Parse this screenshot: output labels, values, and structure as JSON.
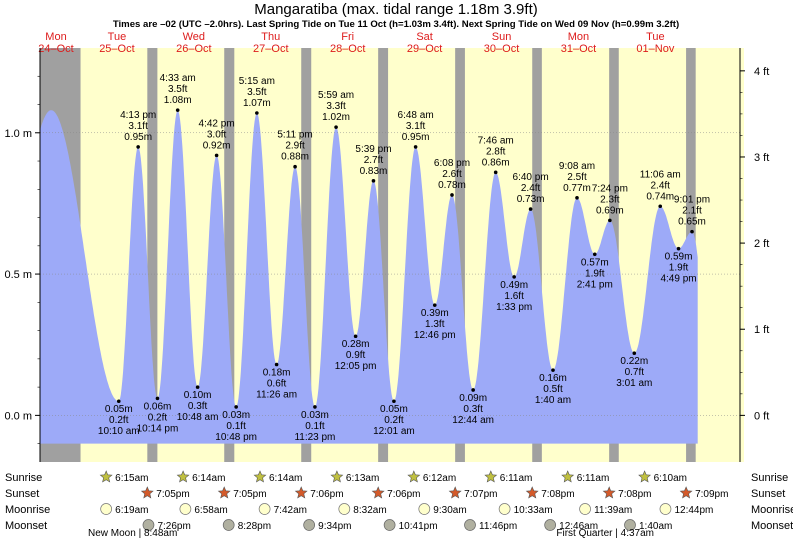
{
  "chart_data": {
    "type": "area",
    "title": "Mangaratiba (max. tidal range 1.18m 3.9ft)",
    "subtitle": "Times are –02 (UTC –2.0hrs). Last Spring Tide on Tue 11 Oct (h=1.03m 3.4ft). Next Spring Tide on Wed 09 Nov (h=0.99m 3.2ft)",
    "ylim": [
      -0.165,
      1.3
    ],
    "metric_axis": [
      {
        "label": "1.0 m",
        "v": 1.0
      },
      {
        "label": "0.5 m",
        "v": 0.5
      },
      {
        "label": "0.0 m",
        "v": 0.0
      }
    ],
    "feet_axis": [
      {
        "label": "4 ft",
        "ft": 4
      },
      {
        "label": "3 ft",
        "ft": 3
      },
      {
        "label": "2 ft",
        "ft": 2
      },
      {
        "label": "1 ft",
        "ft": 1
      },
      {
        "label": "0 ft",
        "ft": 0
      }
    ],
    "days": [
      {
        "dow": "Mon",
        "date": "24–Oct"
      },
      {
        "dow": "Tue",
        "date": "25–Oct"
      },
      {
        "dow": "Wed",
        "date": "26–Oct"
      },
      {
        "dow": "Thu",
        "date": "27–Oct"
      },
      {
        "dow": "Fri",
        "date": "28–Oct"
      },
      {
        "dow": "Sat",
        "date": "29–Oct"
      },
      {
        "dow": "Sun",
        "date": "30–Oct"
      },
      {
        "dow": "Mon",
        "date": "31–Oct"
      },
      {
        "dow": "Tue",
        "date": "01–Nov"
      }
    ],
    "daylight": [
      {
        "sunrise": 0.927,
        "sunset": 1.795
      },
      {
        "sunrise": 1.926,
        "sunset": 2.795
      },
      {
        "sunrise": 2.926,
        "sunset": 3.796
      },
      {
        "sunrise": 3.926,
        "sunset": 4.796
      },
      {
        "sunrise": 4.925,
        "sunset": 5.797
      },
      {
        "sunrise": 5.924,
        "sunset": 6.799
      },
      {
        "sunrise": 6.924,
        "sunset": 7.799
      },
      {
        "sunrise": 7.924,
        "sunset": 8.799
      },
      {
        "sunrise": 8.924,
        "sunset": 9.5
      }
    ],
    "tides": [
      {
        "t": 0.545,
        "h": 1.08,
        "labelled": false
      },
      {
        "t": 1.424,
        "h": 0.05,
        "time": "10:10 am",
        "ft": "0.2 ft",
        "m": "0.05 m"
      },
      {
        "t": 1.676,
        "h": 0.95,
        "time": "4:13 pm",
        "ft": "3.1 ft",
        "m": "0.95 m"
      },
      {
        "t": 1.927,
        "h": 0.06,
        "time": "10:14 pm",
        "ft": "0.2 ft",
        "m": "0.06 m"
      },
      {
        "t": 2.19,
        "h": 1.08,
        "time": "4:33 am",
        "ft": "3.5 ft",
        "m": "1.08 m"
      },
      {
        "t": 2.449,
        "h": 0.1,
        "time": "10:48 am",
        "ft": "0.3 ft",
        "m": "0.10 m"
      },
      {
        "t": 2.696,
        "h": 0.92,
        "time": "4:42 pm",
        "ft": "3.0 ft",
        "m": "0.92 m"
      },
      {
        "t": 2.95,
        "h": 0.03,
        "time": "10:48 pm",
        "ft": "0.1 ft",
        "m": "0.03 m"
      },
      {
        "t": 3.219,
        "h": 1.07,
        "time": "5:15 am",
        "ft": "3.5 ft",
        "m": "1.07 m"
      },
      {
        "t": 3.476,
        "h": 0.18,
        "time": "11:26 am",
        "ft": "0.6 ft",
        "m": "0.18 m"
      },
      {
        "t": 3.716,
        "h": 0.88,
        "time": "5:11 pm",
        "ft": "2.9 ft",
        "m": "0.88 m"
      },
      {
        "t": 3.974,
        "h": 0.03,
        "time": "11:23 pm",
        "ft": "0.1 ft",
        "m": "0.03 m"
      },
      {
        "t": 4.249,
        "h": 1.02,
        "time": "5:59 am",
        "ft": "3.3 ft",
        "m": "1.02 m"
      },
      {
        "t": 4.503,
        "h": 0.28,
        "time": "12:05 pm",
        "ft": "0.9 ft",
        "m": "0.28 m"
      },
      {
        "t": 4.735,
        "h": 0.83,
        "time": "5:39 pm",
        "ft": "2.7 ft",
        "m": "0.83 m"
      },
      {
        "t": 5.001,
        "h": 0.05,
        "time": "12:01 am",
        "ft": "0.2 ft",
        "m": "0.05 m"
      },
      {
        "t": 5.283,
        "h": 0.95,
        "time": "6:48 am",
        "ft": "3.1 ft",
        "m": "0.95 m"
      },
      {
        "t": 5.532,
        "h": 0.39,
        "time": "12:46 pm",
        "ft": "1.3 ft",
        "m": "0.39 m"
      },
      {
        "t": 5.756,
        "h": 0.78,
        "time": "6:08 pm",
        "ft": "2.6 ft",
        "m": "0.78 m"
      },
      {
        "t": 6.031,
        "h": 0.09,
        "time": "12:44 am",
        "ft": "0.3 ft",
        "m": "0.09 m"
      },
      {
        "t": 6.324,
        "h": 0.86,
        "time": "7:46 am",
        "ft": "2.8 ft",
        "m": "0.86 m"
      },
      {
        "t": 6.564,
        "h": 0.49,
        "time": "1:33 pm",
        "ft": "1.6 ft",
        "m": "0.49 m"
      },
      {
        "t": 6.778,
        "h": 0.73,
        "time": "6:40 pm",
        "ft": "2.4 ft",
        "m": "0.73 m"
      },
      {
        "t": 7.069,
        "h": 0.16,
        "time": "1:40 am",
        "ft": "0.5 ft",
        "m": "0.16 m"
      },
      {
        "t": 7.381,
        "h": 0.77,
        "time": "9:08 am",
        "ft": "2.5 ft",
        "m": "0.77 m"
      },
      {
        "t": 7.612,
        "h": 0.57,
        "time": "2:41 pm",
        "ft": "1.9 ft",
        "m": "0.57 m"
      },
      {
        "t": 7.808,
        "h": 0.69,
        "time": "7:24 pm",
        "ft": "2.3 ft",
        "m": "0.69 m"
      },
      {
        "t": 8.126,
        "h": 0.22,
        "time": "3:01 am",
        "ft": "0.7 ft",
        "m": "0.22 m"
      },
      {
        "t": 8.463,
        "h": 0.74,
        "time": "11:06 am",
        "ft": "2.4 ft",
        "m": "0.74 m"
      },
      {
        "t": 8.701,
        "h": 0.59,
        "time": "4:49 pm",
        "ft": "1.9 ft",
        "m": "0.59 m"
      },
      {
        "t": 8.876,
        "h": 0.65,
        "time": "9:01 pm",
        "ft": "2.1 ft",
        "m": "0.65 m"
      }
    ],
    "row_labels": {
      "sunrise": "Sunrise",
      "sunset": "Sunset",
      "moonrise": "Moonrise",
      "moonset": "Moonset"
    },
    "sunrise": [
      {
        "t": 1.26,
        "label": "6:15am"
      },
      {
        "t": 2.26,
        "label": "6:14am"
      },
      {
        "t": 3.26,
        "label": "6:14am"
      },
      {
        "t": 4.26,
        "label": "6:13am"
      },
      {
        "t": 5.26,
        "label": "6:12am"
      },
      {
        "t": 6.26,
        "label": "6:11am"
      },
      {
        "t": 7.26,
        "label": "6:11am"
      },
      {
        "t": 8.26,
        "label": "6:10am"
      }
    ],
    "sunset": [
      {
        "t": 1.795,
        "label": "7:05pm"
      },
      {
        "t": 2.795,
        "label": "7:05pm"
      },
      {
        "t": 3.796,
        "label": "7:06pm"
      },
      {
        "t": 4.796,
        "label": "7:06pm"
      },
      {
        "t": 5.797,
        "label": "7:07pm"
      },
      {
        "t": 6.799,
        "label": "7:08pm"
      },
      {
        "t": 7.799,
        "label": "7:08pm"
      },
      {
        "t": 8.799,
        "label": "7:09pm"
      }
    ],
    "moonrise": [
      {
        "t": 1.26,
        "label": "6:19am"
      },
      {
        "t": 2.29,
        "label": "6:58am"
      },
      {
        "t": 3.32,
        "label": "7:42am"
      },
      {
        "t": 4.356,
        "label": "8:32am"
      },
      {
        "t": 5.396,
        "label": "9:30am"
      },
      {
        "t": 6.44,
        "label": "10:33am"
      },
      {
        "t": 7.486,
        "label": "11:39am"
      },
      {
        "t": 8.531,
        "label": "12:44pm"
      }
    ],
    "moonset": [
      {
        "t": 1.81,
        "label": "7:26pm"
      },
      {
        "t": 2.853,
        "label": "8:28pm"
      },
      {
        "t": 3.899,
        "label": "9:34pm"
      },
      {
        "t": 4.945,
        "label": "10:41pm"
      },
      {
        "t": 5.99,
        "label": "11:46pm"
      },
      {
        "t": 7.032,
        "label": "12:46am"
      },
      {
        "t": 8.07,
        "label": "1:40am"
      }
    ],
    "moon_phases": [
      {
        "label": "New Moon | 8:48am",
        "anchor": "start"
      },
      {
        "label": "First Quarter | 4:37am",
        "anchor": "end"
      }
    ],
    "colors": {
      "night": "#a0a0a0",
      "day": "#ffffcc",
      "tide": "#9daaf8",
      "header_red": "#dd1c1c",
      "sunrise_star": "#c0c040",
      "sunset_star": "#d45a2a",
      "moonrise": "#ffffcc",
      "moonset": "#b0b0a0"
    }
  }
}
